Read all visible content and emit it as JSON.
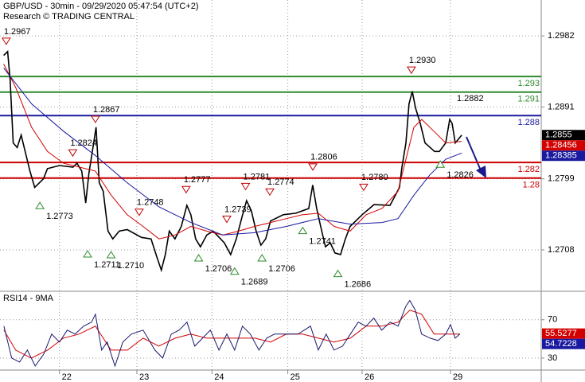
{
  "chart_data": [
    {
      "type": "line",
      "title": "GBP/USD - 30min - 09/29/2020 05:47:54 (UTC+2)",
      "subtitle": "Research © TRADING CENTRAL",
      "xlim": [
        -0.76,
        6.16
      ],
      "ylim": [
        1.2656,
        1.3028
      ],
      "yticks": [
        1.2982,
        1.2891,
        1.2799,
        1.2708
      ],
      "grid": true,
      "levels": [
        {
          "value": 1.293,
          "color": "#2e8b2e"
        },
        {
          "value": 1.291,
          "color": "#2e8b2e"
        },
        {
          "value": 1.288,
          "color": "#1a1aa0"
        },
        {
          "value": 1.282,
          "color": "#cc0000"
        },
        {
          "value": 1.28,
          "color": "#cc0000"
        }
      ],
      "series": [
        {
          "color": "#000000",
          "box": "#000000",
          "last_value": 1.2855,
          "x": [
            -0.713,
            -0.662,
            -0.631,
            -0.591,
            -0.54,
            -0.489,
            -0.438,
            -0.377,
            -0.316,
            -0.204,
            -0.153,
            0,
            0.173,
            0.224,
            0.285,
            0.336,
            0.377,
            0.438,
            0.468,
            0.509,
            0.56,
            0.621,
            0.682,
            0.764,
            0.866,
            1.049,
            1.171,
            1.242,
            1.303,
            1.354,
            1.405,
            1.477,
            1.558,
            1.629,
            1.68,
            1.741,
            1.802,
            1.884,
            1.965,
            2.108,
            2.189,
            2.261,
            2.342,
            2.393,
            2.454,
            2.515,
            2.576,
            2.637,
            2.699,
            2.862,
            3.024,
            3.187,
            3.238,
            3.289,
            3.34,
            3.401,
            3.462,
            3.523,
            3.595,
            3.656,
            3.717,
            3.87,
            4.022,
            4.226,
            4.348,
            4.379,
            4.43,
            4.47,
            4.511,
            4.552,
            4.613,
            4.674,
            4.796,
            4.857,
            4.939,
            4.99,
            5.02,
            5.061,
            5.143
          ],
          "values": [
            1.2957,
            1.2962,
            1.2926,
            1.2845,
            1.2839,
            1.2855,
            1.2834,
            1.2809,
            1.2788,
            1.2799,
            1.2812,
            1.2816,
            1.2814,
            1.2819,
            1.2809,
            1.2768,
            1.2806,
            1.2845,
            1.2865,
            1.2794,
            1.2783,
            1.2732,
            1.2722,
            1.2732,
            1.2734,
            1.2724,
            1.2722,
            1.27,
            1.2682,
            1.2702,
            1.2732,
            1.2722,
            1.2738,
            1.2765,
            1.2753,
            1.2722,
            1.2712,
            1.2727,
            1.2732,
            1.2717,
            1.2702,
            1.2722,
            1.2753,
            1.2771,
            1.2758,
            1.2732,
            1.2714,
            1.2722,
            1.2745,
            1.2753,
            1.2755,
            1.2761,
            1.2791,
            1.2761,
            1.2738,
            1.2712,
            1.2717,
            1.2704,
            1.2702,
            1.2722,
            1.2738,
            1.2753,
            1.2766,
            1.2765,
            1.2788,
            1.2814,
            1.2845,
            1.2895,
            1.2911,
            1.289,
            1.287,
            1.2845,
            1.2834,
            1.2834,
            1.2845,
            1.2875,
            1.287,
            1.2845,
            1.2855
          ]
        },
        {
          "color": "#d40000",
          "box": "#d40000",
          "last_value": 1.28456,
          "x": [
            -0.713,
            -0.56,
            -0.356,
            -0.153,
            0.051,
            0.255,
            0.458,
            0.662,
            0.866,
            1.069,
            1.273,
            1.477,
            1.68,
            1.884,
            2.088,
            2.291,
            2.495,
            2.699,
            2.902,
            3.106,
            3.31,
            3.513,
            3.717,
            3.921,
            4.124,
            4.328,
            4.43,
            4.532,
            4.633,
            4.786,
            4.939,
            5.143
          ],
          "values": [
            1.2946,
            1.2916,
            1.2865,
            1.2834,
            1.2819,
            1.2814,
            1.2809,
            1.2778,
            1.2753,
            1.2738,
            1.2722,
            1.2727,
            1.2738,
            1.2732,
            1.2727,
            1.2732,
            1.2738,
            1.2743,
            1.2748,
            1.2753,
            1.2755,
            1.2738,
            1.2732,
            1.2753,
            1.2761,
            1.2783,
            1.2824,
            1.2865,
            1.2875,
            1.286,
            1.2845,
            1.2847
          ]
        },
        {
          "color": "#1a1aa0",
          "box": "#1a1aa0",
          "last_value": 1.28385,
          "x": [
            -0.713,
            -0.356,
            0.051,
            0.458,
            0.866,
            1.273,
            1.68,
            2.088,
            2.495,
            2.902,
            3.31,
            3.717,
            4.124,
            4.328,
            4.532,
            4.735,
            4.939,
            5.143
          ],
          "values": [
            1.2941,
            1.2895,
            1.286,
            1.2829,
            1.2794,
            1.2763,
            1.2743,
            1.2727,
            1.273,
            1.2738,
            1.2748,
            1.2741,
            1.2743,
            1.2748,
            1.2778,
            1.2804,
            1.2824,
            1.2832
          ]
        }
      ],
      "annotations": [
        {
          "x": -0.68,
          "value": 1.2967,
          "label": "1.2967",
          "kind": "high"
        },
        {
          "x": 0.17,
          "value": 1.2824,
          "label": "1.2824",
          "kind": "high"
        },
        {
          "x": 0.46,
          "value": 1.2867,
          "label": "1.2867",
          "kind": "high"
        },
        {
          "x": -0.25,
          "value": 1.2773,
          "label": "1.2773",
          "kind": "low"
        },
        {
          "x": 0.36,
          "value": 1.2711,
          "label": "1.2711",
          "kind": "low"
        },
        {
          "x": 0.66,
          "value": 1.271,
          "label": "1.2710",
          "kind": "low"
        },
        {
          "x": 1.02,
          "value": 1.2748,
          "label": "1.2748",
          "kind": "high"
        },
        {
          "x": 1.62,
          "value": 1.2777,
          "label": "1.2777",
          "kind": "high"
        },
        {
          "x": 1.78,
          "value": 1.2706,
          "label": "1.2706",
          "kind": "low"
        },
        {
          "x": 2.14,
          "value": 1.2739,
          "label": "1.2739",
          "kind": "high"
        },
        {
          "x": 2.24,
          "value": 1.2689,
          "label": "1.2689",
          "kind": "low"
        },
        {
          "x": 2.38,
          "value": 1.2781,
          "label": "1.2781",
          "kind": "high"
        },
        {
          "x": 2.59,
          "value": 1.2706,
          "label": "1.2706",
          "kind": "low"
        },
        {
          "x": 2.69,
          "value": 1.2774,
          "label": "1.2774",
          "kind": "high"
        },
        {
          "x": 3.11,
          "value": 1.2741,
          "label": "1.2741",
          "kind": "low"
        },
        {
          "x": 3.24,
          "value": 1.2806,
          "label": "1.2806",
          "kind": "high"
        },
        {
          "x": 3.56,
          "value": 1.2686,
          "label": "1.2686",
          "kind": "low"
        },
        {
          "x": 3.89,
          "value": 1.278,
          "label": "1.2780",
          "kind": "high"
        },
        {
          "x": 4.5,
          "value": 1.293,
          "label": "1.2930",
          "kind": "high"
        },
        {
          "x": 5.02,
          "value": 1.2882,
          "label": "1.2882"
        },
        {
          "x": 4.87,
          "value": 1.2826,
          "label": "1.2826",
          "kind": "low"
        }
      ]
    },
    {
      "type": "line",
      "title": "RSI14 - 9MA",
      "xlim": [
        -0.76,
        6.16
      ],
      "xticks": [
        {
          "value": 0,
          "label": "22"
        },
        {
          "value": 0.99,
          "label": "23"
        },
        {
          "value": 1.95,
          "label": "24"
        },
        {
          "value": 2.92,
          "label": "25"
        },
        {
          "value": 3.87,
          "label": "26"
        },
        {
          "value": 5,
          "label": "29"
        }
      ],
      "ylim": [
        17.5,
        98
      ],
      "yticks": [
        30,
        70
      ],
      "grid": true,
      "series": [
        {
          "color": "#d40000",
          "box": "#d40000",
          "last_value": 55.5277,
          "x": [
            -0.71,
            -0.56,
            -0.36,
            -0.15,
            0.05,
            0.25,
            0.46,
            0.66,
            0.87,
            1.07,
            1.27,
            1.48,
            1.68,
            1.88,
            2.09,
            2.29,
            2.5,
            2.7,
            2.9,
            3.11,
            3.31,
            3.51,
            3.72,
            3.92,
            4.12,
            4.33,
            4.48,
            4.63,
            4.79,
            4.94,
            5.12
          ],
          "values": [
            59.2,
            38.3,
            30,
            38.3,
            50.8,
            55,
            63.3,
            38.3,
            38.3,
            50.8,
            42.5,
            50.8,
            55,
            50.8,
            50.8,
            50.8,
            50.8,
            46.7,
            55,
            55,
            50.8,
            46.7,
            50.8,
            63.3,
            63.3,
            67.5,
            80,
            75.8,
            55,
            55,
            55
          ]
        },
        {
          "color": "#1a1a6e",
          "box": "#1a1aa0",
          "last_value": 54.7228,
          "x": [
            -0.71,
            -0.61,
            -0.51,
            -0.41,
            -0.31,
            -0.2,
            -0.1,
            0,
            0.1,
            0.2,
            0.31,
            0.41,
            0.46,
            0.54,
            0.61,
            0.71,
            0.81,
            0.92,
            1.07,
            1.22,
            1.32,
            1.43,
            1.53,
            1.63,
            1.73,
            1.83,
            1.93,
            2.04,
            2.14,
            2.24,
            2.34,
            2.44,
            2.55,
            2.65,
            2.75,
            2.9,
            3.05,
            3.21,
            3.31,
            3.41,
            3.51,
            3.62,
            3.72,
            3.82,
            3.92,
            4.02,
            4.12,
            4.23,
            4.33,
            4.43,
            4.48,
            4.55,
            4.63,
            4.74,
            4.84,
            4.94,
            5,
            5.06,
            5.12
          ],
          "values": [
            63.3,
            30,
            25.8,
            38.3,
            21.7,
            34.2,
            55,
            46.7,
            59.2,
            55,
            63.3,
            67.5,
            75.8,
            38.3,
            46.7,
            21.7,
            46.7,
            55,
            59.2,
            38.3,
            30,
            55,
            59.2,
            67.5,
            42.5,
            50.8,
            59.2,
            38.3,
            55,
            38.3,
            63.3,
            55,
            38.3,
            50.8,
            55,
            55,
            55,
            63.3,
            38.3,
            55,
            38.3,
            42.5,
            55,
            67.5,
            63.3,
            71.7,
            59.2,
            67.5,
            63.3,
            84.2,
            90,
            80,
            55,
            50.8,
            48.3,
            55,
            65,
            50.8,
            55
          ]
        }
      ]
    }
  ]
}
